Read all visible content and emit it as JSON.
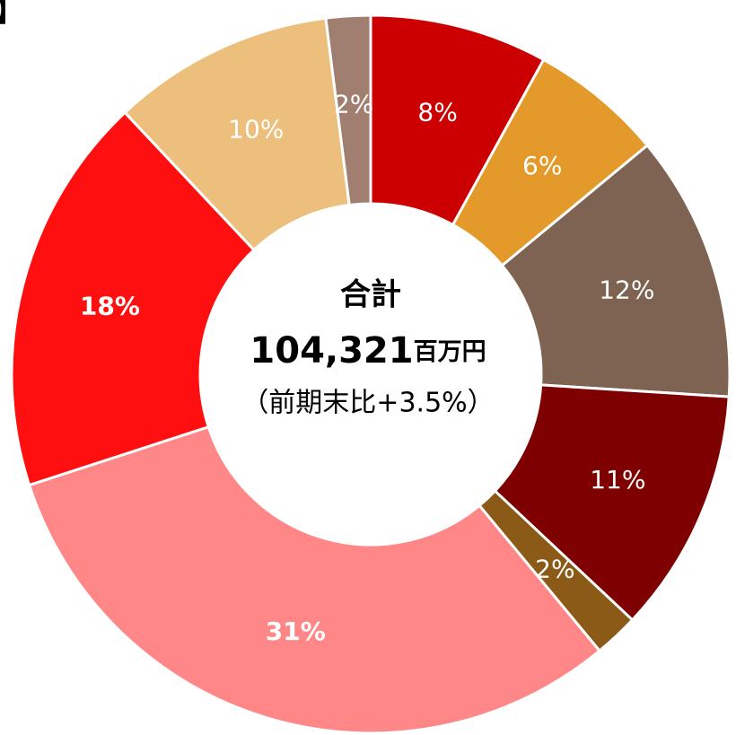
{
  "chart_data": {
    "type": "donut",
    "fragment": "】",
    "center_title": "合計",
    "center_value": "104,321",
    "center_unit": "百万円",
    "center_note": "（前期末比+3.5%）",
    "values": [
      8,
      6,
      12,
      11,
      2,
      31,
      18,
      10,
      2
    ],
    "value_labels": [
      "8%",
      "6%",
      "12%",
      "11%",
      "2%",
      "31%",
      "18%",
      "10%",
      "2%"
    ],
    "colors": [
      "#cc0000",
      "#e39a2a",
      "#7e6252",
      "#7f0000",
      "#8b5a16",
      "#ff8787",
      "#ff0f0f",
      "#ecbf7c",
      "#a17f70"
    ],
    "label_bold": [
      false,
      false,
      false,
      false,
      false,
      true,
      true,
      false,
      false
    ]
  }
}
